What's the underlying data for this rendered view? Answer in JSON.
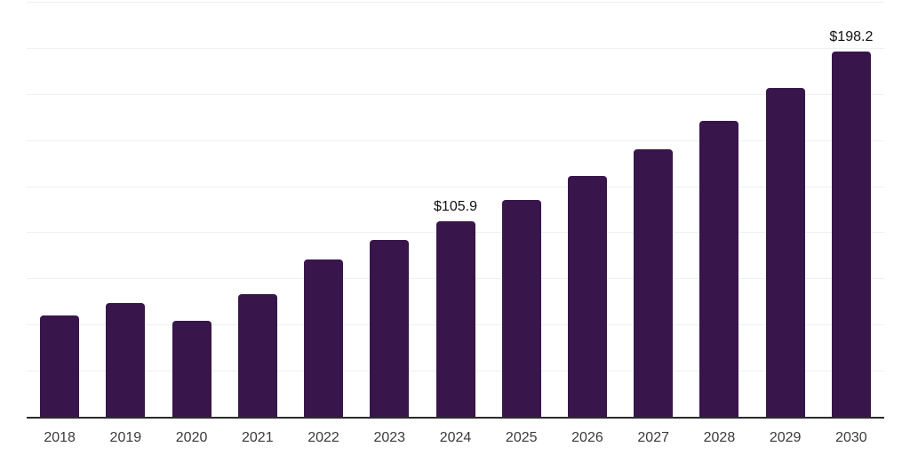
{
  "chart_data": {
    "type": "bar",
    "title": "",
    "xlabel": "",
    "ylabel": "",
    "categories": [
      "2018",
      "2019",
      "2020",
      "2021",
      "2022",
      "2023",
      "2024",
      "2025",
      "2026",
      "2027",
      "2028",
      "2029",
      "2030"
    ],
    "values": [
      55.0,
      61.6,
      52.0,
      66.4,
      85.2,
      95.8,
      105.9,
      117.5,
      130.5,
      144.8,
      160.6,
      178.5,
      198.2
    ],
    "data_labels": [
      "",
      "",
      "",
      "",
      "",
      "",
      "$105.9",
      "",
      "",
      "",
      "",
      "",
      "$198.2"
    ],
    "ylim": [
      0,
      225
    ],
    "grid_step": 25,
    "grid": true,
    "legend": false,
    "y_axis_labels_visible": false,
    "colors": {
      "bar": "#38164c",
      "axis_line": "#2b2b2b",
      "gridline": "#f0f0f0",
      "data_label": "#111111",
      "tick_label": "#3a3a3a",
      "background": "#ffffff"
    }
  }
}
